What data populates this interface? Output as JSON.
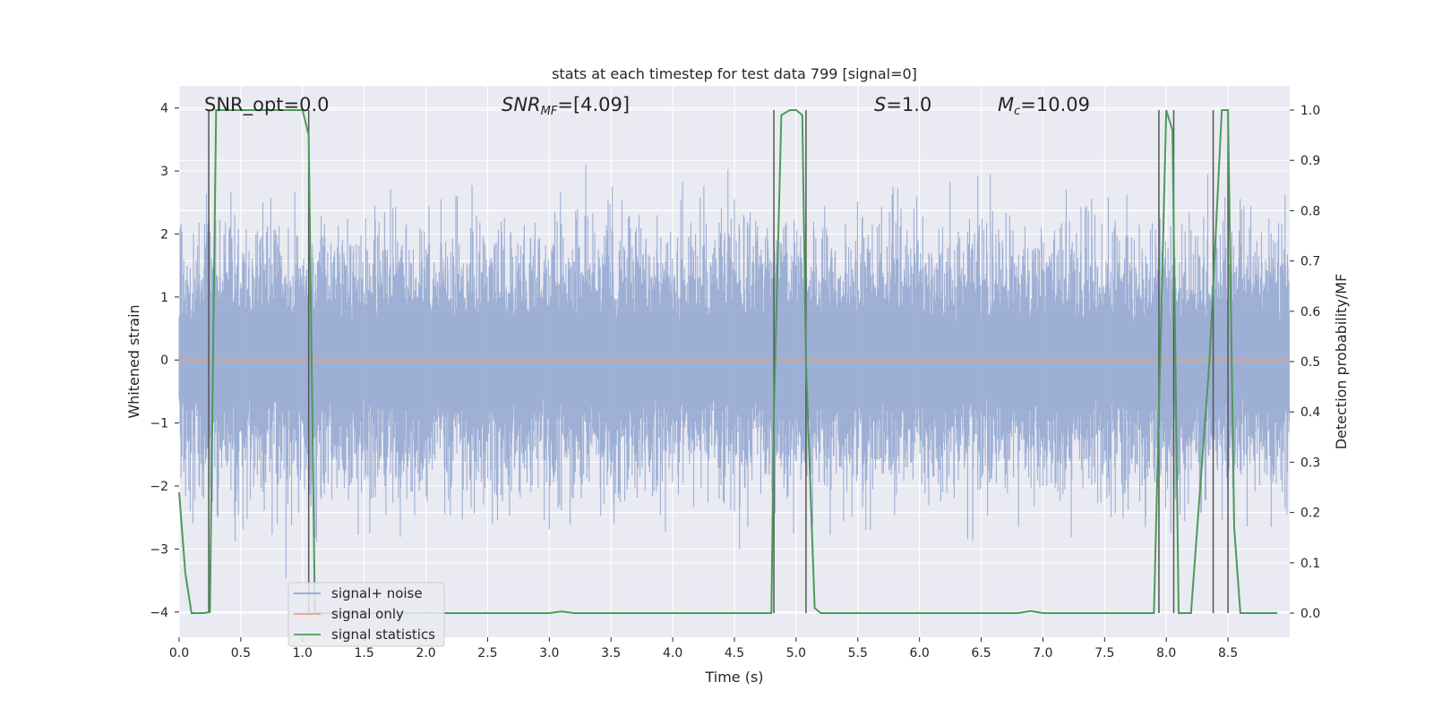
{
  "chart_data": {
    "type": "line",
    "title": "stats at each timestep for test data 799 [signal=0]",
    "xlabel": "Time (s)",
    "ylabel": "Whitened strain",
    "y2label": "Detection probability/MF",
    "xlim": [
      0.0,
      9.0
    ],
    "ylim": [
      -4.4,
      4.35
    ],
    "y2lim": [
      -0.048,
      1.048
    ],
    "x_ticks": [
      0.0,
      0.5,
      1.0,
      1.5,
      2.0,
      2.5,
      3.0,
      3.5,
      4.0,
      4.5,
      5.0,
      5.5,
      6.0,
      6.5,
      7.0,
      7.5,
      8.0,
      8.5
    ],
    "x_tick_labels": [
      "0.0",
      "0.5",
      "1.0",
      "1.5",
      "2.0",
      "2.5",
      "3.0",
      "3.5",
      "4.0",
      "4.5",
      "5.0",
      "5.5",
      "6.0",
      "6.5",
      "7.0",
      "7.5",
      "8.0",
      "8.5"
    ],
    "y_ticks": [
      -4,
      -3,
      -2,
      -1,
      0,
      1,
      2,
      3,
      4
    ],
    "y_tick_labels": [
      "−4",
      "−3",
      "−2",
      "−1",
      "0",
      "1",
      "2",
      "3",
      "4"
    ],
    "y2_ticks": [
      0.0,
      0.1,
      0.2,
      0.3,
      0.4,
      0.5,
      0.6,
      0.7,
      0.8,
      0.9,
      1.0
    ],
    "y2_tick_labels": [
      "0.0",
      "0.1",
      "0.2",
      "0.3",
      "0.4",
      "0.5",
      "0.6",
      "0.7",
      "0.8",
      "0.9",
      "1.0"
    ],
    "grid": true,
    "legend_position": "lower-left",
    "annotations": {
      "snr_opt": "SNR_opt=0.0",
      "snr_mf_main": "SNR",
      "snr_mf_sub": "MF",
      "snr_mf_rest": "=[4.09]",
      "s_main": "S",
      "s_rest": "=1.0",
      "mc_main": "M",
      "mc_sub": "c",
      "mc_rest": "=10.09"
    },
    "series": [
      {
        "name": "signal+ noise",
        "color": "#8fa5cf",
        "note_kind": "noise",
        "y_envelope": [
          -3.6,
          3.6
        ]
      },
      {
        "name": "signal only",
        "color": "#e8a07a",
        "x": [
          0.0,
          9.0
        ],
        "y": [
          0.0,
          0.0
        ]
      },
      {
        "name": "signal statistics",
        "color": "#4c9a5a",
        "axis": "right",
        "x": [
          0.0,
          0.05,
          0.1,
          0.2,
          0.25,
          0.3,
          0.35,
          1.0,
          1.05,
          1.1,
          1.15,
          1.2,
          1.3,
          3.0,
          3.1,
          3.2,
          4.8,
          4.82,
          4.88,
          4.95,
          5.0,
          5.05,
          5.08,
          5.15,
          5.2,
          5.3,
          6.8,
          6.9,
          7.0,
          7.9,
          7.95,
          8.0,
          8.05,
          8.1,
          8.2,
          8.35,
          8.45,
          8.5,
          8.55,
          8.6,
          8.9
        ],
        "y": [
          0.24,
          0.08,
          0.0,
          0.0,
          0.002,
          1.0,
          1.0,
          1.0,
          0.95,
          0.0,
          0.0,
          0.0,
          0.0,
          0.0,
          0.003,
          0.0,
          0.0,
          0.4,
          0.99,
          1.0,
          1.0,
          0.99,
          0.5,
          0.01,
          0.0,
          0.0,
          0.0,
          0.004,
          0.0,
          0.0,
          0.5,
          1.0,
          0.96,
          0.0,
          0.0,
          0.5,
          1.0,
          1.0,
          0.17,
          0.0,
          0.0
        ]
      }
    ],
    "vertical_markers": [
      0.24,
      1.05,
      4.82,
      5.08,
      7.94,
      8.06,
      8.38,
      8.5
    ]
  }
}
